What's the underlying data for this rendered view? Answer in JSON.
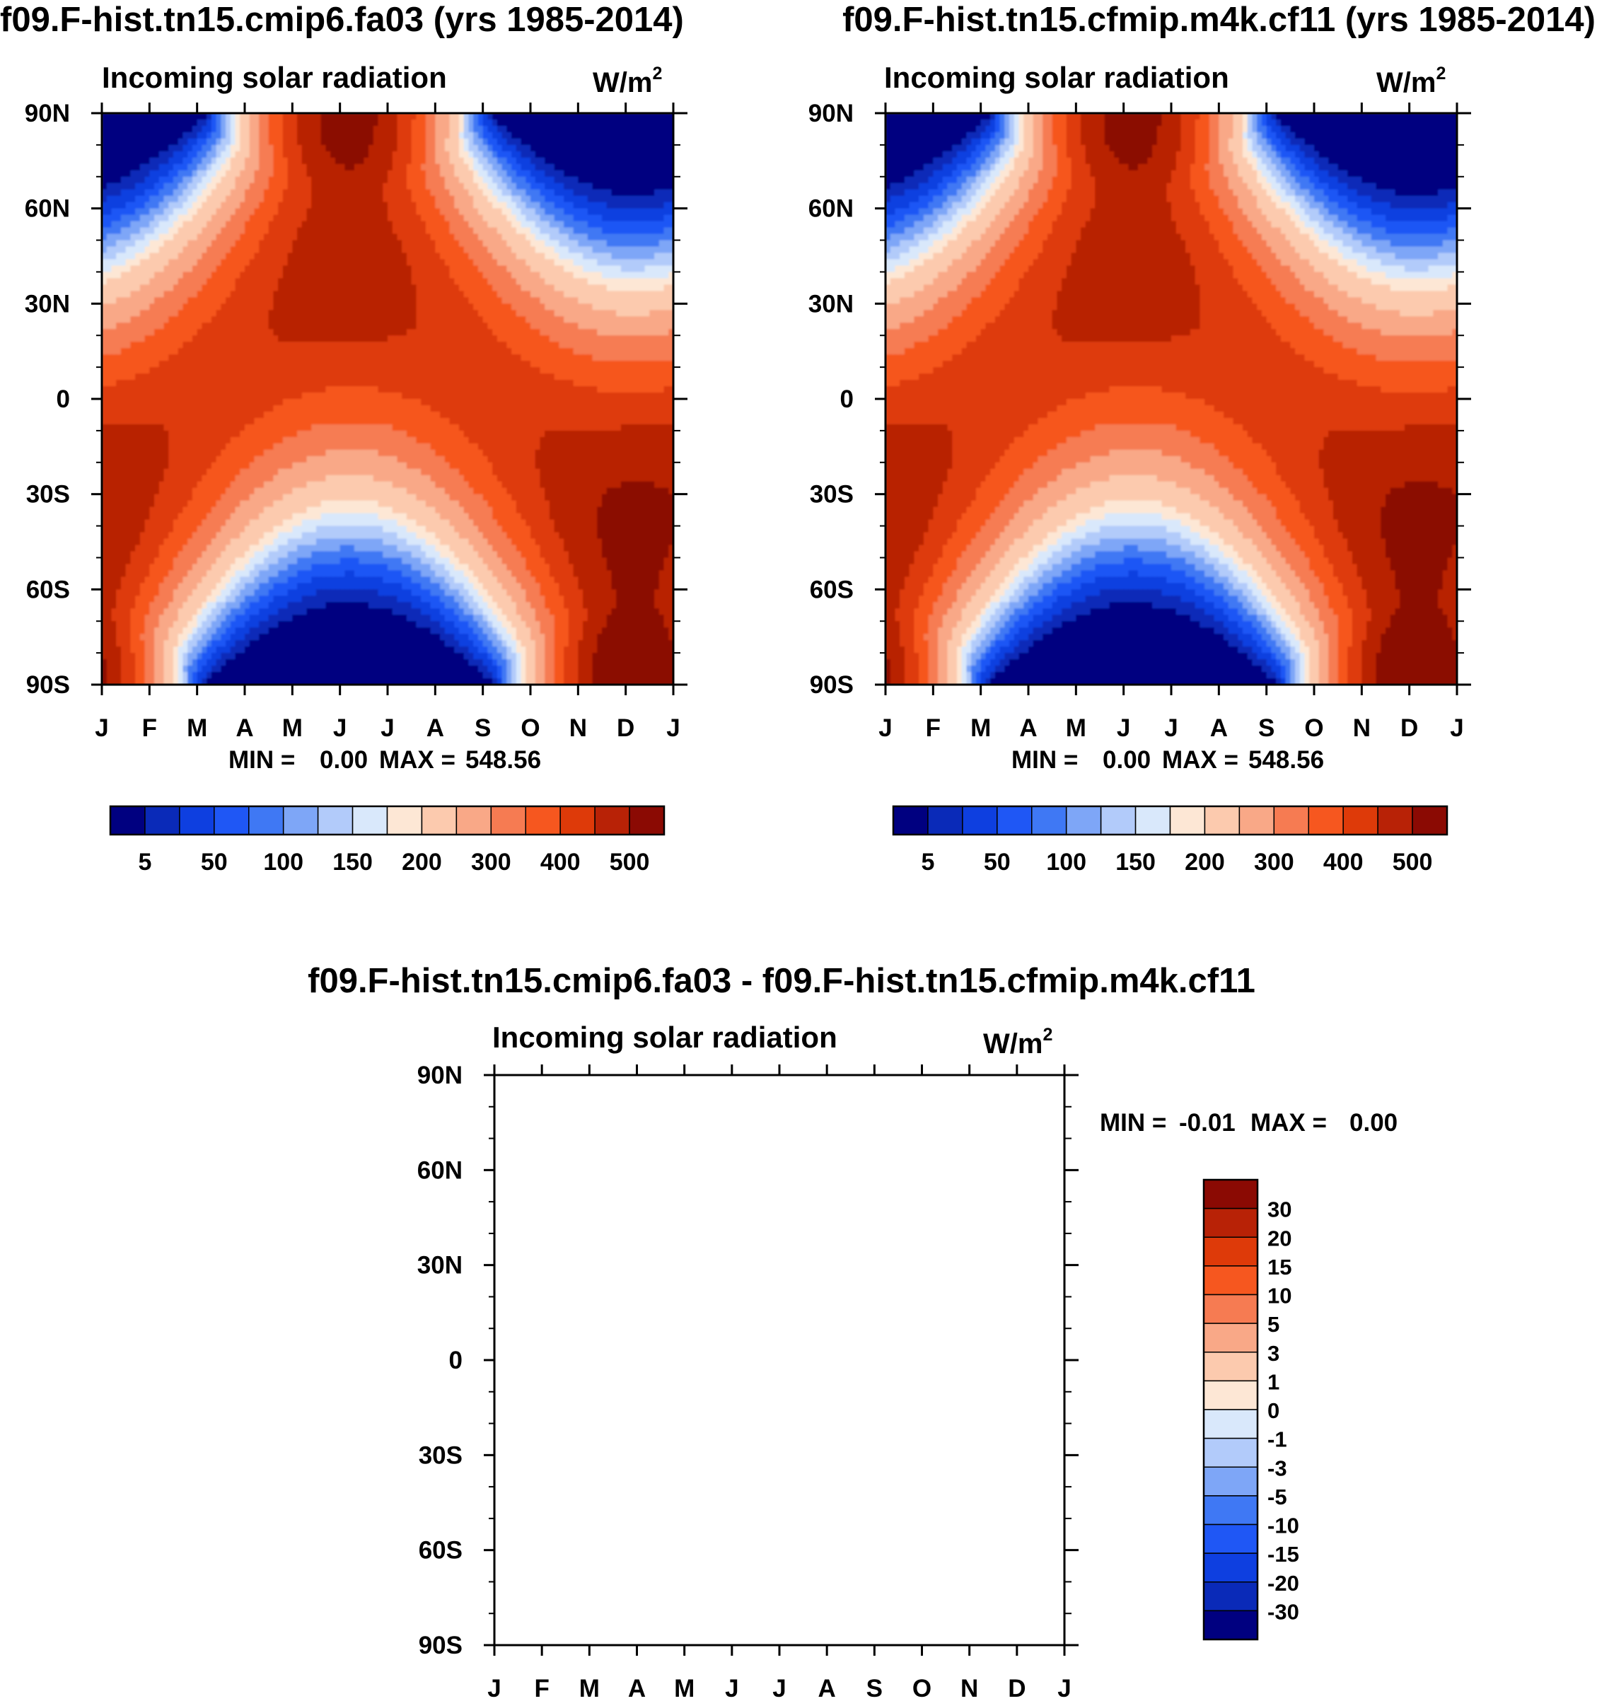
{
  "colors": {
    "seq": [
      "#000080",
      "#0a2ab8",
      "#0e3fe0",
      "#1f57f5",
      "#3f78f4",
      "#7ea6f7",
      "#b2cbfa",
      "#d9e8fb",
      "#fde7d5",
      "#fccaae",
      "#f9a887",
      "#f67b52",
      "#f6571f",
      "#de3a09",
      "#b82206",
      "#8b0a03"
    ],
    "div": [
      "#000080",
      "#0a2ab8",
      "#0e3fe0",
      "#1f57f5",
      "#3f78f4",
      "#7ea6f7",
      "#b2cbfa",
      "#d9e8fb",
      "#fde7d5",
      "#fccaae",
      "#f9a887",
      "#f67b52",
      "#f6571f",
      "#de3a09",
      "#b82206",
      "#8b0a03"
    ]
  },
  "chart_data": [
    {
      "type": "heatmap",
      "title": "f09.F-hist.tn15.cmip6.fa03 (yrs 1985-2014)",
      "subtitle": "Incoming solar radiation",
      "units_base": "W/m",
      "units_exp": "2",
      "x_ticks": [
        "J",
        "F",
        "M",
        "A",
        "M",
        "J",
        "J",
        "A",
        "S",
        "O",
        "N",
        "D",
        "J"
      ],
      "y_ticks": [
        "90N",
        "60N",
        "30N",
        "0",
        "30S",
        "60S",
        "90S"
      ],
      "stats": {
        "min_label": "MIN =",
        "min_value": "0.00",
        "max_label": "MAX =",
        "max_value": "548.56",
        "min": 0.0,
        "max": 548.56
      },
      "levels": [
        "5",
        "50",
        "100",
        "150",
        "200",
        "300",
        "400",
        "500"
      ],
      "colorbar_orientation": "horizontal"
    },
    {
      "type": "heatmap",
      "title": "f09.F-hist.tn15.cfmip.m4k.cf11 (yrs 1985-2014)",
      "subtitle": "Incoming solar radiation",
      "units_base": "W/m",
      "units_exp": "2",
      "x_ticks": [
        "J",
        "F",
        "M",
        "A",
        "M",
        "J",
        "J",
        "A",
        "S",
        "O",
        "N",
        "D",
        "J"
      ],
      "y_ticks": [
        "90N",
        "60N",
        "30N",
        "0",
        "30S",
        "60S",
        "90S"
      ],
      "stats": {
        "min_label": "MIN =",
        "min_value": "0.00",
        "max_label": "MAX =",
        "max_value": "548.56",
        "min": 0.0,
        "max": 548.56
      },
      "levels": [
        "5",
        "50",
        "100",
        "150",
        "200",
        "300",
        "400",
        "500"
      ],
      "colorbar_orientation": "horizontal"
    },
    {
      "type": "heatmap",
      "title": "f09.F-hist.tn15.cmip6.fa03 - f09.F-hist.tn15.cfmip.m4k.cf11",
      "subtitle": "Incoming solar radiation",
      "units_base": "W/m",
      "units_exp": "2",
      "x_ticks": [
        "J",
        "F",
        "M",
        "A",
        "M",
        "J",
        "J",
        "A",
        "S",
        "O",
        "N",
        "D",
        "J"
      ],
      "y_ticks": [
        "90N",
        "60N",
        "30N",
        "0",
        "30S",
        "60S",
        "90S"
      ],
      "stats": {
        "min_label": "MIN =",
        "min_value": "-0.01",
        "max_label": "MAX =",
        "max_value": "0.00",
        "min": -0.01,
        "max": 0.0
      },
      "levels": [
        "30",
        "20",
        "15",
        "10",
        "5",
        "3",
        "1",
        "0",
        "-1",
        "-3",
        "-5",
        "-10",
        "-15",
        "-20",
        "-30"
      ],
      "colorbar_orientation": "vertical",
      "field": "empty"
    }
  ]
}
